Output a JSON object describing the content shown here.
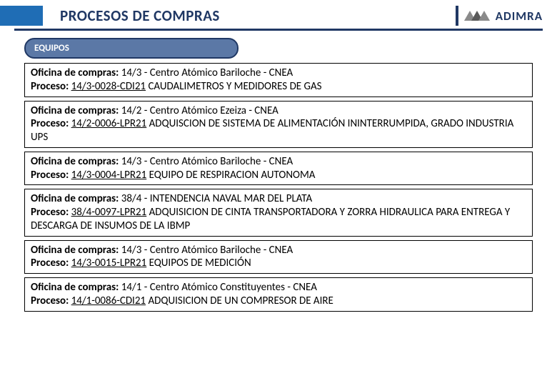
{
  "header": {
    "title": "PROCESOS DE COMPRAS",
    "logo_text": "ADIMRA"
  },
  "section": {
    "tag": "EQUIPOS"
  },
  "labels": {
    "oficina": "Oficina de compras:",
    "proceso": "Proceso:"
  },
  "items": [
    {
      "oficina_code": "14/3",
      "oficina_name": "- Centro Atómico Bariloche - CNEA",
      "proceso_code": "14/3-0028-CDI21",
      "proceso_desc": "CAUDALIMETROS Y MEDIDORES DE GAS"
    },
    {
      "oficina_code": "14/2",
      "oficina_name": "- Centro Atómico Ezeiza - CNEA",
      "proceso_code": "14/2-0006-LPR21",
      "proceso_desc": "ADQUISCION DE SISTEMA DE ALIMENTACIÓN ININTERRUMPIDA, GRADO INDUSTRIA UPS"
    },
    {
      "oficina_code": "14/3",
      "oficina_name": "- Centro Atómico Bariloche - CNEA",
      "proceso_code": "14/3-0004-LPR21",
      "proceso_desc": "EQUIPO DE RESPIRACION AUTONOMA"
    },
    {
      "oficina_code": "38/4",
      "oficina_name": "- INTENDENCIA NAVAL MAR DEL PLATA",
      "proceso_code": "38/4-0097-LPR21",
      "proceso_desc": "ADQUISICION DE CINTA TRANSPORTADORA Y ZORRA HIDRAULICA PARA ENTREGA Y DESCARGA DE INSUMOS DE LA IBMP"
    },
    {
      "oficina_code": "14/3",
      "oficina_name": "- Centro Atómico Bariloche - CNEA",
      "proceso_code": "14/3-0015-LPR21",
      "proceso_desc": "EQUIPOS DE MEDICIÓN"
    },
    {
      "oficina_code": "14/1",
      "oficina_name": "- Centro Atómico Constituyentes - CNEA",
      "proceso_code": "14/1-0086-CDI21",
      "proceso_desc": "ADQUISICION DE UN COMPRESOR DE AIRE"
    }
  ]
}
